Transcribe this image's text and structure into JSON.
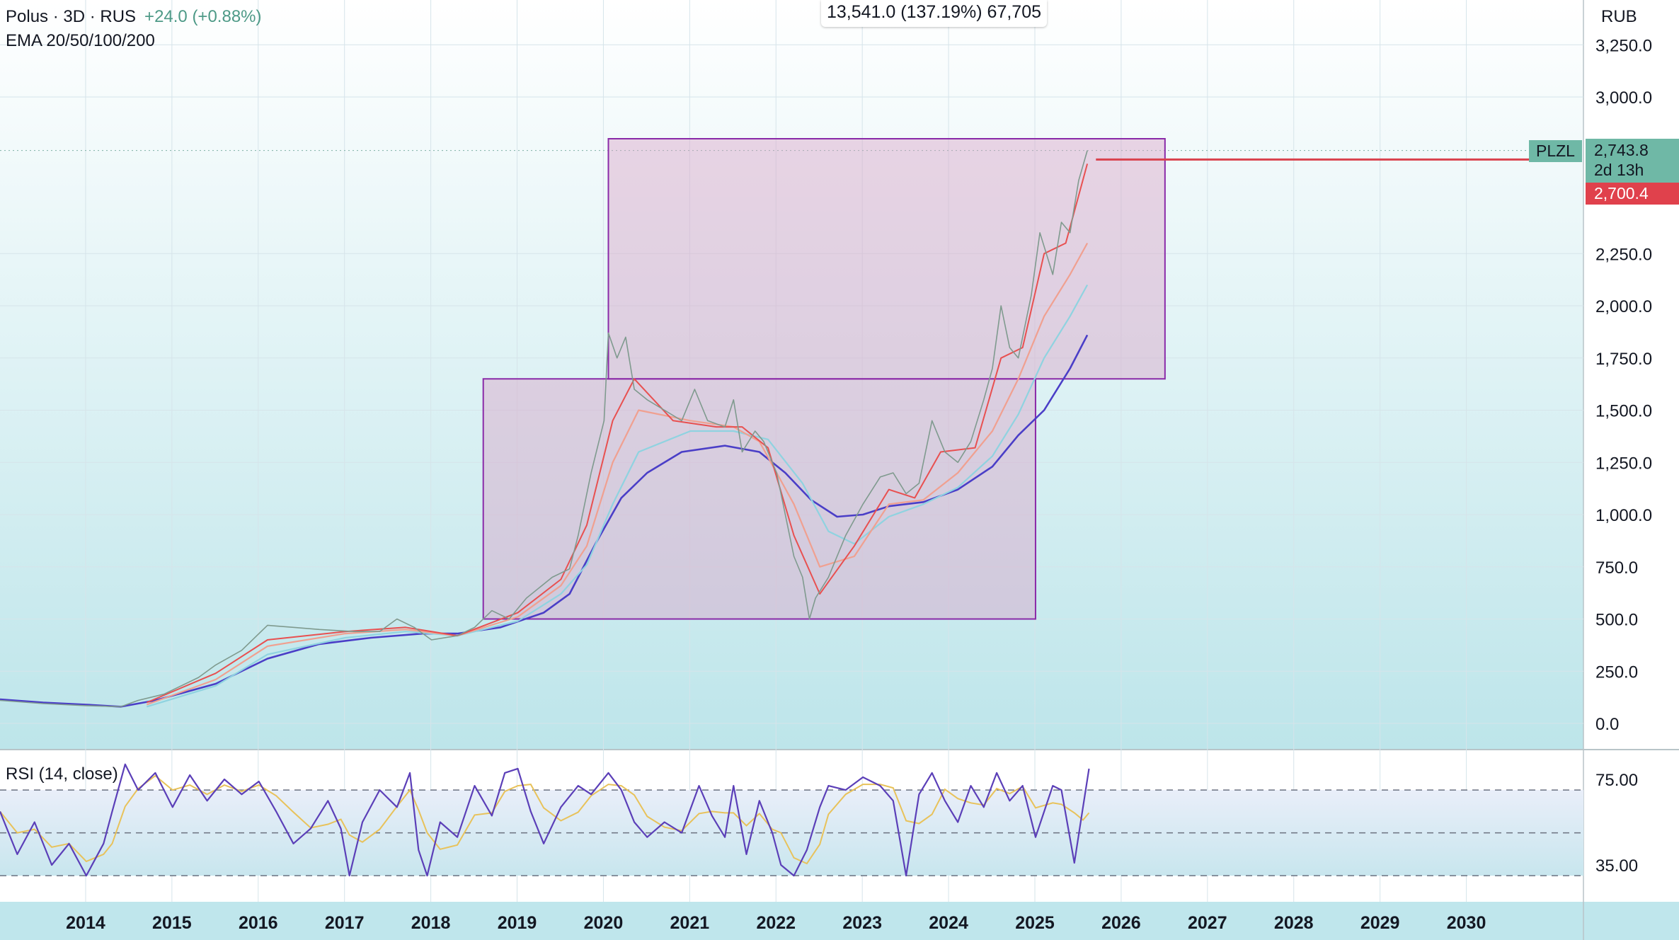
{
  "header": {
    "symbol_line": "Polus · 3D · RUS",
    "change": "+24.0 (+0.88%)",
    "indicator": "EMA 20/50/100/200",
    "measure_readout": "13,541.0 (137.19%) 67,705"
  },
  "currency": "RUB",
  "price_axis_labels": [
    "3,250.0",
    "3,000.0",
    "2,250.0",
    "2,000.0",
    "1,750.0",
    "1,500.0",
    "1,250.0",
    "1,000.0",
    "750.0",
    "500.0",
    "250.0",
    "0.0"
  ],
  "time_axis_labels": [
    "2014",
    "2015",
    "2016",
    "2017",
    "2018",
    "2019",
    "2020",
    "2021",
    "2022",
    "2023",
    "2024",
    "2025",
    "2026",
    "2027",
    "2028",
    "2029",
    "2030"
  ],
  "ticker_tag": "PLZL",
  "last_price": "2,743.8",
  "countdown": "2d 13h",
  "alert_price": "2,700.4",
  "rsi": {
    "label": "RSI (14, close)",
    "axis_labels": [
      "75.00",
      "35.00"
    ],
    "upper_band": 70,
    "middle_band": 50,
    "lower_band": 30
  },
  "colors": {
    "background_top": "#ffffff",
    "background_bottom": "#bde5ea",
    "price_tag": "#6fb8a6",
    "alert_tag": "#e0414c",
    "box_fill": "#d9a5c8",
    "box_stroke": "#8a2aa8",
    "ema200": "#4a3ec7",
    "ema100": "#8fd3e0",
    "ema50": "#f0a090",
    "ema20": "#e85050",
    "rsi_line": "#5b3fb8",
    "rsi_ma": "#e8c25a"
  },
  "chart_data": {
    "type": "line",
    "title": "",
    "ylabel": "",
    "xlabel": "",
    "ylim": [
      -50,
      3350
    ],
    "xlim": [
      2013.5,
      2030.75
    ],
    "log_scale": false,
    "grid": true,
    "boxes": [
      {
        "x": [
          2019.1,
          2025.5
        ],
        "y": [
          500,
          1650
        ]
      },
      {
        "x": [
          2020.55,
          2027.0
        ],
        "y": [
          1650,
          2800
        ]
      }
    ],
    "horizontal_line": {
      "y": 2700.4,
      "x_start": 2026.2
    },
    "series": [
      {
        "key": "price",
        "points": [
          [
            2013.5,
            110
          ],
          [
            2014.0,
            95
          ],
          [
            2014.5,
            85
          ],
          [
            2014.9,
            80
          ],
          [
            2015.1,
            110
          ],
          [
            2015.4,
            140
          ],
          [
            2015.8,
            220
          ],
          [
            2016.0,
            280
          ],
          [
            2016.3,
            350
          ],
          [
            2016.6,
            470
          ],
          [
            2016.9,
            460
          ],
          [
            2017.2,
            450
          ],
          [
            2017.6,
            440
          ],
          [
            2017.9,
            440
          ],
          [
            2018.1,
            500
          ],
          [
            2018.3,
            460
          ],
          [
            2018.5,
            400
          ],
          [
            2018.8,
            420
          ],
          [
            2019.0,
            460
          ],
          [
            2019.2,
            540
          ],
          [
            2019.4,
            500
          ],
          [
            2019.6,
            600
          ],
          [
            2019.9,
            700
          ],
          [
            2020.1,
            740
          ],
          [
            2020.2,
            900
          ],
          [
            2020.35,
            1200
          ],
          [
            2020.5,
            1450
          ],
          [
            2020.55,
            1870
          ],
          [
            2020.65,
            1750
          ],
          [
            2020.75,
            1850
          ],
          [
            2020.85,
            1600
          ],
          [
            2021.0,
            1550
          ],
          [
            2021.2,
            1500
          ],
          [
            2021.4,
            1450
          ],
          [
            2021.55,
            1600
          ],
          [
            2021.7,
            1450
          ],
          [
            2021.9,
            1420
          ],
          [
            2022.0,
            1550
          ],
          [
            2022.1,
            1300
          ],
          [
            2022.25,
            1400
          ],
          [
            2022.35,
            1350
          ],
          [
            2022.5,
            1200
          ],
          [
            2022.6,
            1000
          ],
          [
            2022.7,
            800
          ],
          [
            2022.8,
            700
          ],
          [
            2022.88,
            500
          ],
          [
            2022.95,
            600
          ],
          [
            2023.1,
            700
          ],
          [
            2023.3,
            900
          ],
          [
            2023.5,
            1050
          ],
          [
            2023.7,
            1180
          ],
          [
            2023.85,
            1200
          ],
          [
            2024.0,
            1100
          ],
          [
            2024.15,
            1150
          ],
          [
            2024.3,
            1450
          ],
          [
            2024.45,
            1300
          ],
          [
            2024.6,
            1250
          ],
          [
            2024.75,
            1350
          ],
          [
            2024.9,
            1550
          ],
          [
            2025.0,
            1700
          ],
          [
            2025.1,
            2000
          ],
          [
            2025.2,
            1800
          ],
          [
            2025.3,
            1750
          ],
          [
            2025.45,
            2050
          ],
          [
            2025.55,
            2350
          ],
          [
            2025.7,
            2150
          ],
          [
            2025.8,
            2400
          ],
          [
            2025.9,
            2350
          ],
          [
            2026.0,
            2600
          ],
          [
            2026.1,
            2743.8
          ]
        ]
      },
      {
        "key": "ema20",
        "points": [
          [
            2015.2,
            100
          ],
          [
            2016.0,
            240
          ],
          [
            2016.6,
            400
          ],
          [
            2017.5,
            440
          ],
          [
            2018.2,
            460
          ],
          [
            2018.8,
            420
          ],
          [
            2019.5,
            530
          ],
          [
            2020.0,
            690
          ],
          [
            2020.3,
            950
          ],
          [
            2020.6,
            1450
          ],
          [
            2020.85,
            1650
          ],
          [
            2021.3,
            1450
          ],
          [
            2021.8,
            1420
          ],
          [
            2022.1,
            1420
          ],
          [
            2022.4,
            1320
          ],
          [
            2022.7,
            900
          ],
          [
            2023.0,
            620
          ],
          [
            2023.4,
            850
          ],
          [
            2023.8,
            1120
          ],
          [
            2024.1,
            1080
          ],
          [
            2024.4,
            1300
          ],
          [
            2024.8,
            1320
          ],
          [
            2025.1,
            1750
          ],
          [
            2025.35,
            1800
          ],
          [
            2025.6,
            2250
          ],
          [
            2025.85,
            2300
          ],
          [
            2026.1,
            2680
          ]
        ]
      },
      {
        "key": "ema50",
        "points": [
          [
            2015.2,
            90
          ],
          [
            2016.0,
            210
          ],
          [
            2016.6,
            370
          ],
          [
            2017.5,
            430
          ],
          [
            2018.2,
            450
          ],
          [
            2018.8,
            420
          ],
          [
            2019.5,
            510
          ],
          [
            2020.0,
            660
          ],
          [
            2020.3,
            850
          ],
          [
            2020.6,
            1250
          ],
          [
            2020.9,
            1500
          ],
          [
            2021.5,
            1450
          ],
          [
            2022.0,
            1420
          ],
          [
            2022.3,
            1350
          ],
          [
            2022.7,
            1050
          ],
          [
            2023.0,
            750
          ],
          [
            2023.4,
            800
          ],
          [
            2023.8,
            1050
          ],
          [
            2024.2,
            1070
          ],
          [
            2024.6,
            1200
          ],
          [
            2025.0,
            1400
          ],
          [
            2025.3,
            1650
          ],
          [
            2025.6,
            1950
          ],
          [
            2025.9,
            2150
          ],
          [
            2026.1,
            2300
          ]
        ]
      },
      {
        "key": "ema100",
        "points": [
          [
            2015.2,
            80
          ],
          [
            2016.0,
            180
          ],
          [
            2016.6,
            330
          ],
          [
            2017.5,
            410
          ],
          [
            2018.2,
            440
          ],
          [
            2018.8,
            420
          ],
          [
            2019.5,
            490
          ],
          [
            2020.0,
            620
          ],
          [
            2020.3,
            760
          ],
          [
            2020.6,
            1050
          ],
          [
            2020.9,
            1300
          ],
          [
            2021.5,
            1400
          ],
          [
            2022.0,
            1400
          ],
          [
            2022.4,
            1360
          ],
          [
            2022.8,
            1150
          ],
          [
            2023.1,
            920
          ],
          [
            2023.4,
            860
          ],
          [
            2023.8,
            990
          ],
          [
            2024.2,
            1050
          ],
          [
            2024.6,
            1130
          ],
          [
            2025.0,
            1280
          ],
          [
            2025.3,
            1480
          ],
          [
            2025.6,
            1750
          ],
          [
            2025.9,
            1950
          ],
          [
            2026.1,
            2100
          ]
        ]
      },
      {
        "key": "ema200",
        "points": [
          [
            2013.5,
            115
          ],
          [
            2014.0,
            100
          ],
          [
            2014.5,
            90
          ],
          [
            2014.9,
            80
          ],
          [
            2015.3,
            110
          ],
          [
            2016.0,
            190
          ],
          [
            2016.6,
            310
          ],
          [
            2017.2,
            380
          ],
          [
            2017.8,
            410
          ],
          [
            2018.4,
            430
          ],
          [
            2018.8,
            430
          ],
          [
            2019.3,
            460
          ],
          [
            2019.8,
            530
          ],
          [
            2020.1,
            620
          ],
          [
            2020.4,
            860
          ],
          [
            2020.7,
            1080
          ],
          [
            2021.0,
            1200
          ],
          [
            2021.4,
            1300
          ],
          [
            2021.9,
            1330
          ],
          [
            2022.3,
            1300
          ],
          [
            2022.6,
            1200
          ],
          [
            2022.9,
            1070
          ],
          [
            2023.2,
            990
          ],
          [
            2023.5,
            1000
          ],
          [
            2023.8,
            1040
          ],
          [
            2024.2,
            1060
          ],
          [
            2024.6,
            1120
          ],
          [
            2025.0,
            1230
          ],
          [
            2025.3,
            1380
          ],
          [
            2025.6,
            1500
          ],
          [
            2025.9,
            1700
          ],
          [
            2026.1,
            1860
          ]
        ]
      }
    ],
    "rsi_series": [
      [
        2013.5,
        60
      ],
      [
        2013.7,
        40
      ],
      [
        2013.9,
        55
      ],
      [
        2014.1,
        35
      ],
      [
        2014.3,
        45
      ],
      [
        2014.5,
        30
      ],
      [
        2014.7,
        45
      ],
      [
        2014.8,
        60
      ],
      [
        2014.95,
        82
      ],
      [
        2015.1,
        70
      ],
      [
        2015.3,
        78
      ],
      [
        2015.5,
        62
      ],
      [
        2015.7,
        77
      ],
      [
        2015.9,
        65
      ],
      [
        2016.1,
        75
      ],
      [
        2016.3,
        68
      ],
      [
        2016.5,
        74
      ],
      [
        2016.7,
        60
      ],
      [
        2016.9,
        45
      ],
      [
        2017.1,
        52
      ],
      [
        2017.3,
        65
      ],
      [
        2017.45,
        52
      ],
      [
        2017.55,
        30
      ],
      [
        2017.7,
        55
      ],
      [
        2017.9,
        70
      ],
      [
        2018.1,
        62
      ],
      [
        2018.25,
        78
      ],
      [
        2018.35,
        42
      ],
      [
        2018.45,
        30
      ],
      [
        2018.6,
        55
      ],
      [
        2018.8,
        48
      ],
      [
        2019.0,
        72
      ],
      [
        2019.2,
        58
      ],
      [
        2019.35,
        78
      ],
      [
        2019.5,
        80
      ],
      [
        2019.65,
        60
      ],
      [
        2019.8,
        45
      ],
      [
        2020.0,
        62
      ],
      [
        2020.2,
        72
      ],
      [
        2020.35,
        68
      ],
      [
        2020.55,
        78
      ],
      [
        2020.7,
        70
      ],
      [
        2020.85,
        55
      ],
      [
        2021.0,
        48
      ],
      [
        2021.2,
        55
      ],
      [
        2021.4,
        50
      ],
      [
        2021.6,
        72
      ],
      [
        2021.75,
        58
      ],
      [
        2021.9,
        48
      ],
      [
        2022.0,
        72
      ],
      [
        2022.15,
        40
      ],
      [
        2022.3,
        65
      ],
      [
        2022.45,
        50
      ],
      [
        2022.55,
        35
      ],
      [
        2022.7,
        30
      ],
      [
        2022.85,
        42
      ],
      [
        2023.0,
        62
      ],
      [
        2023.1,
        72
      ],
      [
        2023.3,
        70
      ],
      [
        2023.5,
        76
      ],
      [
        2023.7,
        72
      ],
      [
        2023.85,
        65
      ],
      [
        2024.0,
        30
      ],
      [
        2024.15,
        68
      ],
      [
        2024.3,
        78
      ],
      [
        2024.45,
        65
      ],
      [
        2024.6,
        55
      ],
      [
        2024.75,
        72
      ],
      [
        2024.9,
        62
      ],
      [
        2025.05,
        78
      ],
      [
        2025.2,
        65
      ],
      [
        2025.35,
        72
      ],
      [
        2025.5,
        48
      ],
      [
        2025.7,
        72
      ],
      [
        2025.8,
        70
      ],
      [
        2025.95,
        36
      ],
      [
        2026.05,
        62
      ],
      [
        2026.12,
        80
      ]
    ]
  }
}
